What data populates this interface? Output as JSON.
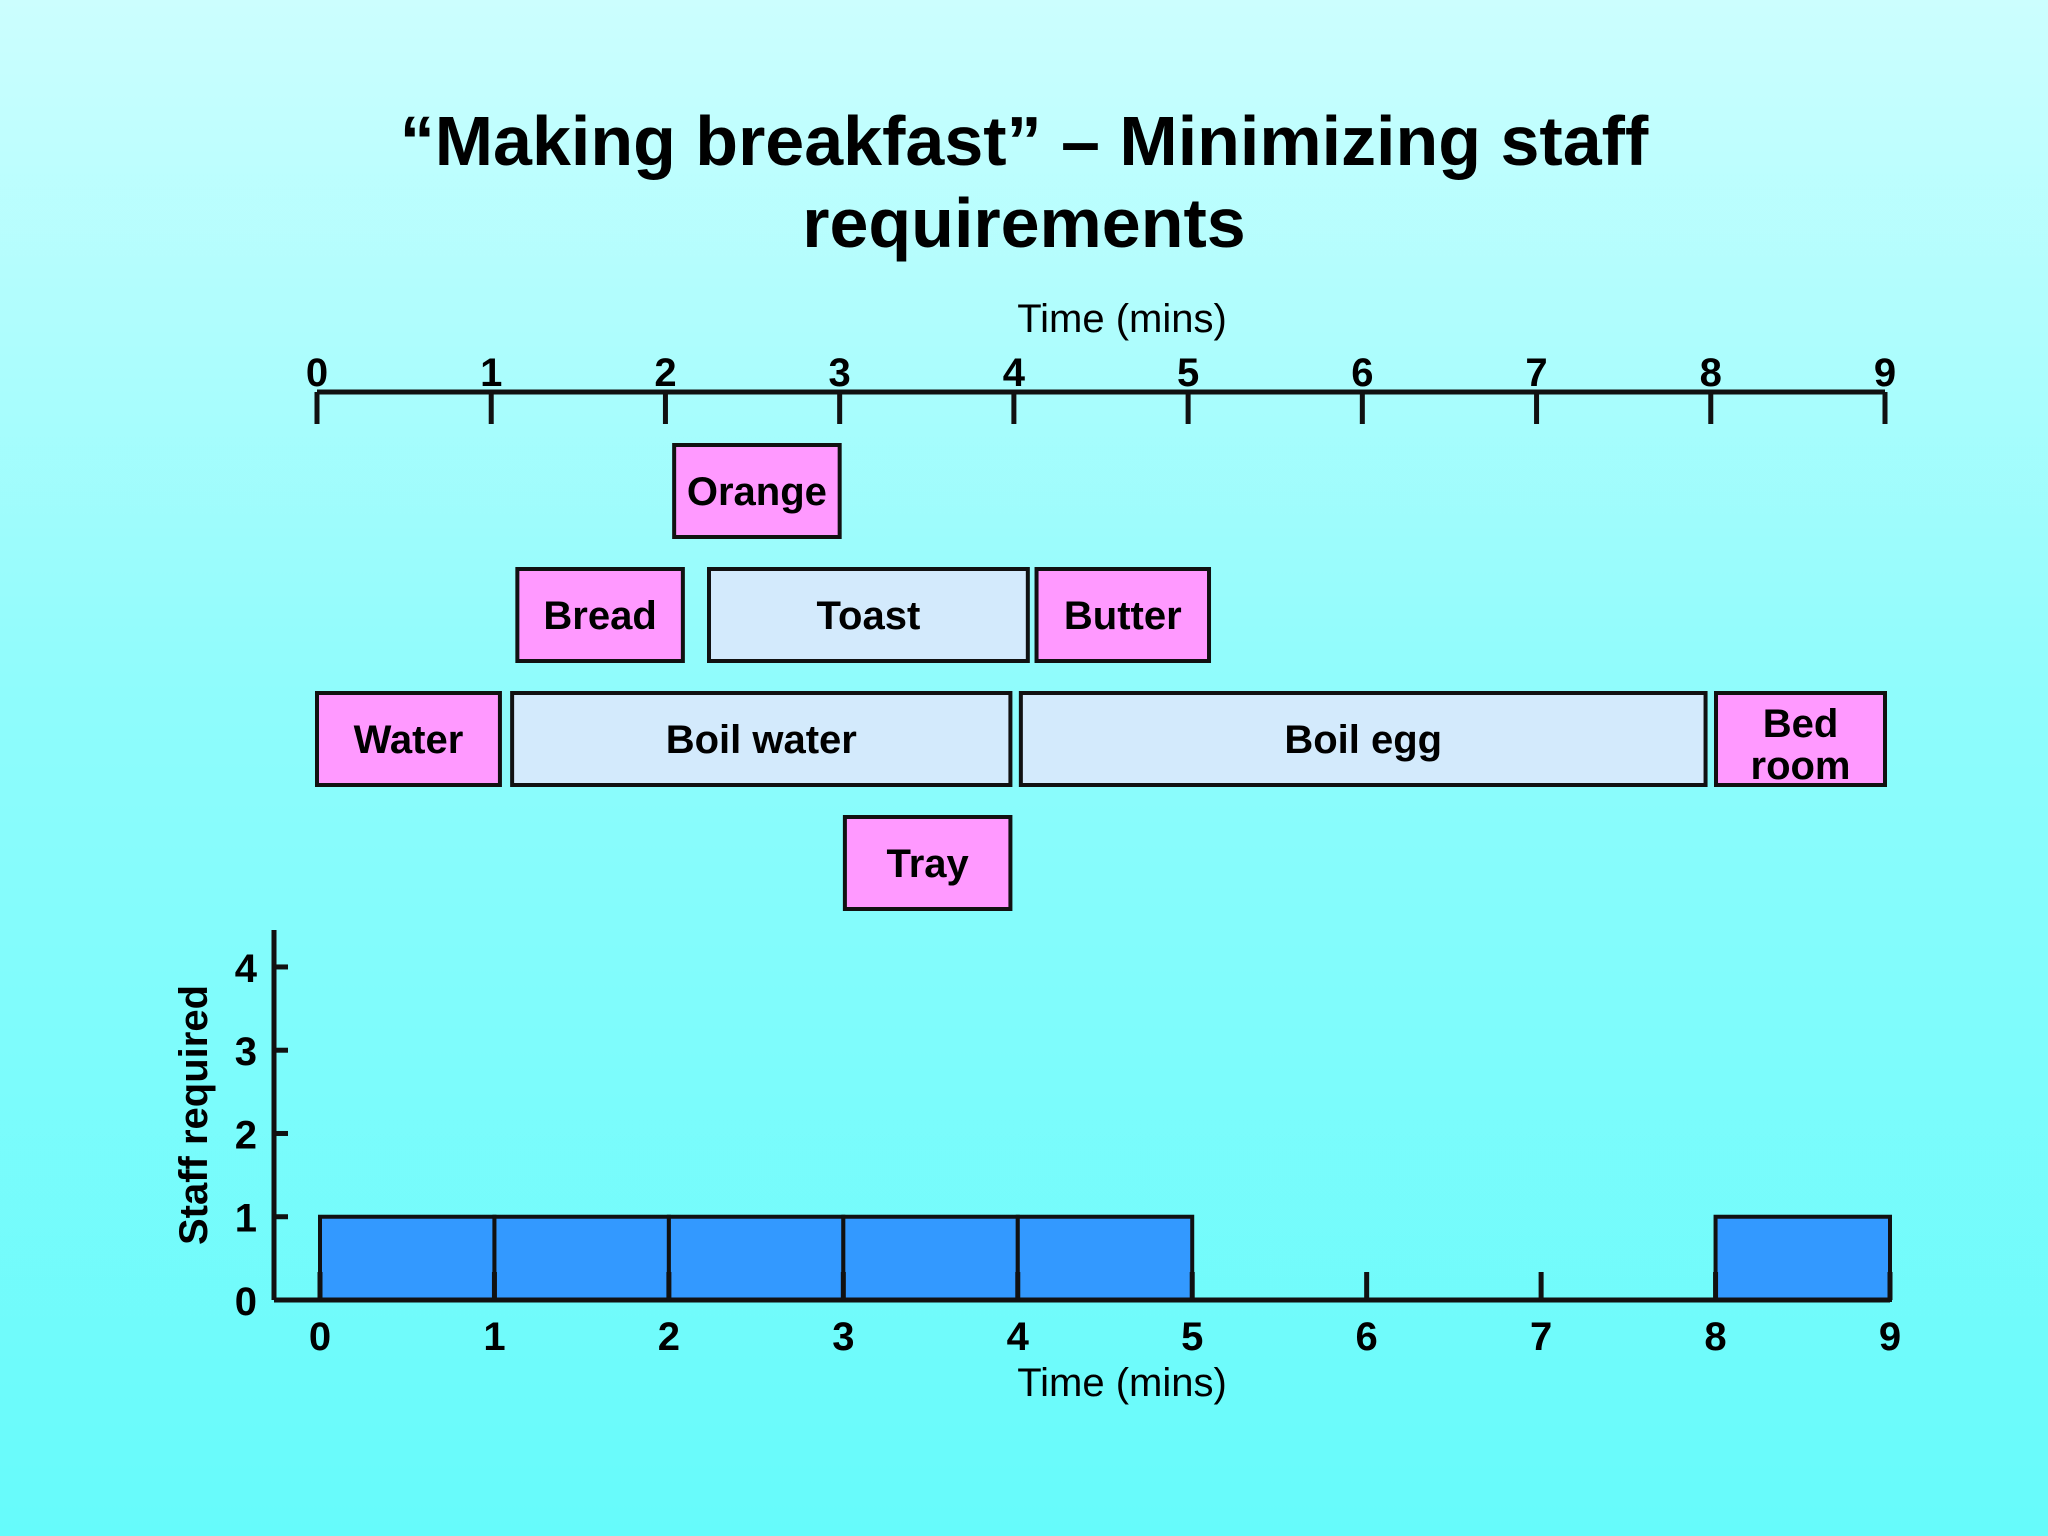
{
  "title": {
    "line1": "“Making breakfast” – Minimizing staff",
    "line2": "requirements"
  },
  "chart_data": [
    {
      "type": "gantt",
      "xlabel": "Time (mins)",
      "xlim": [
        0,
        9
      ],
      "xticks": [
        "0",
        "1",
        "2",
        "3",
        "4",
        "5",
        "6",
        "7",
        "8",
        "9"
      ],
      "tasks": [
        {
          "label": "Orange",
          "start": 2.05,
          "end": 3.0,
          "row": 0,
          "kind": "manual"
        },
        {
          "label": "Bread",
          "start": 1.15,
          "end": 2.1,
          "row": 1,
          "kind": "manual"
        },
        {
          "label": "Toast",
          "start": 2.25,
          "end": 4.08,
          "row": 1,
          "kind": "automatic"
        },
        {
          "label": "Butter",
          "start": 4.13,
          "end": 5.12,
          "row": 1,
          "kind": "manual"
        },
        {
          "label": "Water",
          "start": 0.0,
          "end": 1.05,
          "row": 2,
          "kind": "manual"
        },
        {
          "label": "Boil water",
          "start": 1.12,
          "end": 3.98,
          "row": 2,
          "kind": "automatic"
        },
        {
          "label": "Boil egg",
          "start": 4.04,
          "end": 7.97,
          "row": 2,
          "kind": "automatic"
        },
        {
          "label": "Bed room",
          "start": 8.03,
          "end": 9.0,
          "row": 2,
          "kind": "manual"
        },
        {
          "label": "Tray",
          "start": 3.03,
          "end": 3.98,
          "row": 3,
          "kind": "manual"
        }
      ],
      "colors": {
        "manual": "#ff99ff",
        "automatic": "#d3eafc",
        "border": "#111111"
      }
    },
    {
      "type": "bar",
      "xlabel": "Time (mins)",
      "ylabel": "Staff required",
      "xlim": [
        0,
        9
      ],
      "ylim": [
        0,
        4.6
      ],
      "xticks": [
        "0",
        "1",
        "2",
        "3",
        "4",
        "5",
        "6",
        "7",
        "8",
        "9"
      ],
      "yticks": [
        "0",
        "1",
        "2",
        "3",
        "4"
      ],
      "bins": [
        {
          "start": 0,
          "end": 1,
          "value": 1
        },
        {
          "start": 1,
          "end": 2,
          "value": 1
        },
        {
          "start": 2,
          "end": 3,
          "value": 1
        },
        {
          "start": 3,
          "end": 4,
          "value": 1
        },
        {
          "start": 4,
          "end": 5,
          "value": 1
        },
        {
          "start": 5,
          "end": 6,
          "value": 0
        },
        {
          "start": 6,
          "end": 7,
          "value": 0
        },
        {
          "start": 7,
          "end": 8,
          "value": 0
        },
        {
          "start": 8,
          "end": 9,
          "value": 1
        }
      ],
      "colors": {
        "bar": "#3399ff",
        "border": "#111111"
      }
    }
  ]
}
